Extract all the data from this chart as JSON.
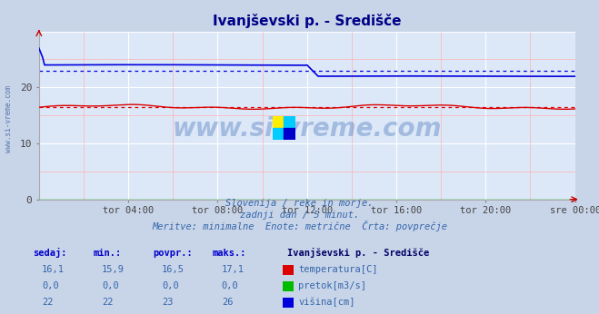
{
  "title": "Ivanjševski p. - Središče",
  "bg_color": "#c8d4e8",
  "plot_bg_color": "#dce8f8",
  "xlim": [
    0,
    288
  ],
  "ylim": [
    0,
    30
  ],
  "yticks": [
    0,
    10,
    20
  ],
  "xtick_labels": [
    "tor 04:00",
    "tor 08:00",
    "tor 12:00",
    "tor 16:00",
    "tor 20:00",
    "sre 00:00"
  ],
  "xtick_positions": [
    48,
    96,
    144,
    192,
    240,
    288
  ],
  "temp_color": "#dd0000",
  "flow_color": "#00bb00",
  "height_color": "#0000dd",
  "watermark": "www.si-vreme.com",
  "footer_line1": "Slovenija / reke in morje.",
  "footer_line2": "zadnji dan / 5 minut.",
  "footer_line3": "Meritve: minimalne  Enote: metrične  Črta: povprečje",
  "legend_title": "Ivanjševski p. - Središče",
  "legend_items": [
    {
      "label": "temperatura[C]",
      "color": "#dd0000"
    },
    {
      "label": "pretok[m3/s]",
      "color": "#00bb00"
    },
    {
      "label": "višina[cm]",
      "color": "#0000dd"
    }
  ],
  "table_headers": [
    "sedaj:",
    "min.:",
    "povpr.:",
    "maks.:"
  ],
  "table_data": [
    [
      "16,1",
      "15,9",
      "16,5",
      "17,1"
    ],
    [
      "0,0",
      "0,0",
      "0,0",
      "0,0"
    ],
    [
      "22",
      "22",
      "23",
      "26"
    ]
  ],
  "temp_avg_value": 16.5,
  "height_avg_value": 23.0,
  "sidebar_text": "www.si-vreme.com"
}
